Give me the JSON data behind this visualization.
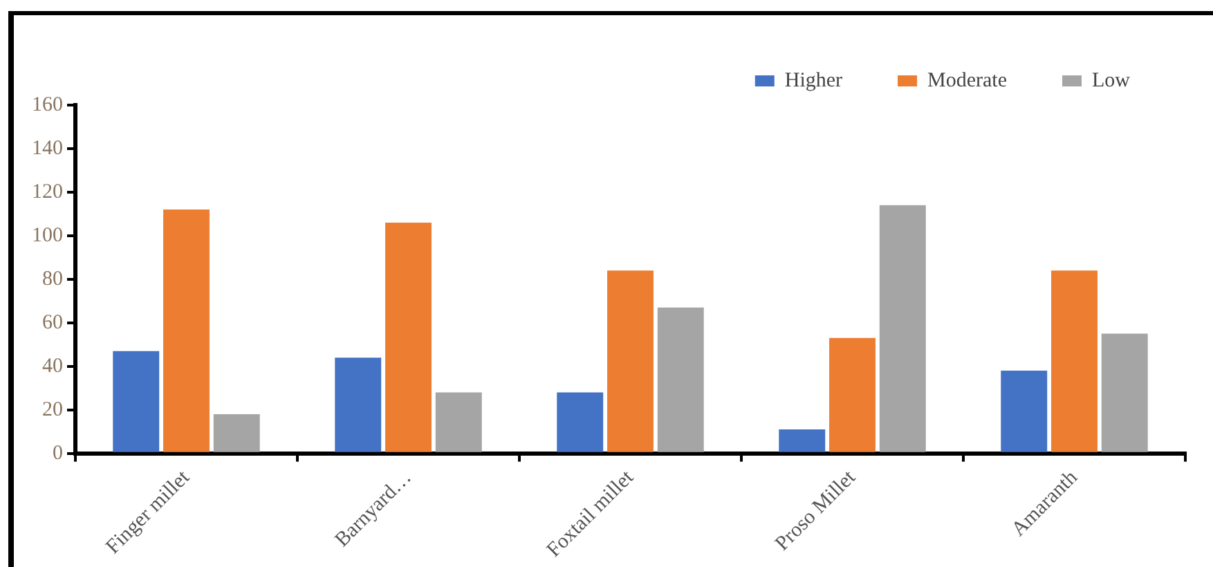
{
  "chart_data": {
    "type": "bar",
    "categories": [
      "Finger millet",
      "Barnyard…",
      "Foxtail millet",
      "Proso Millet",
      "Amaranth"
    ],
    "series": [
      {
        "name": "Higher",
        "color": "#4472c4",
        "values": [
          47,
          44,
          28,
          11,
          38
        ]
      },
      {
        "name": "Moderate",
        "color": "#ed7d31",
        "values": [
          112,
          106,
          84,
          53,
          84
        ]
      },
      {
        "name": "Low",
        "color": "#a5a5a5",
        "values": [
          18,
          28,
          67,
          114,
          55
        ]
      }
    ],
    "ylim": [
      0,
      160
    ],
    "yticks": [
      0,
      20,
      40,
      60,
      80,
      100,
      120,
      140,
      160
    ],
    "grid": false,
    "legend": "top right"
  }
}
